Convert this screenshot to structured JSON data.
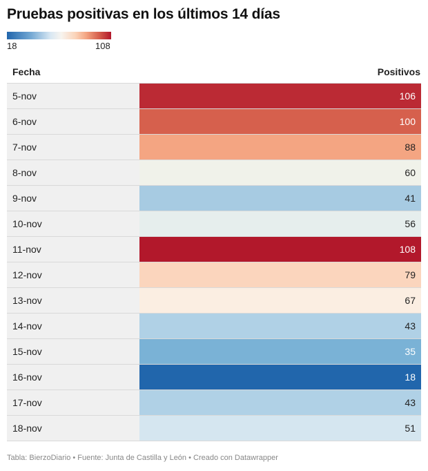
{
  "title": "Pruebas positivas en los últimos 14 días",
  "legend": {
    "min_label": "18",
    "max_label": "108",
    "min": 18,
    "max": 108
  },
  "footer": "Tabla: BierzoDiario • Fuente: Junta de Castilla y León • Creado con Datawrapper",
  "chart_data": {
    "type": "table",
    "columns": [
      "Fecha",
      "Positivos"
    ],
    "rows": [
      {
        "label": "5-nov",
        "value": 106,
        "color": "#bb2a34"
      },
      {
        "label": "6-nov",
        "value": 100,
        "color": "#d6604d"
      },
      {
        "label": "7-nov",
        "value": 88,
        "color": "#f4a582"
      },
      {
        "label": "8-nov",
        "value": 60,
        "color": "#f0f2ea"
      },
      {
        "label": "9-nov",
        "value": 41,
        "color": "#a7cbe2"
      },
      {
        "label": "10-nov",
        "value": 56,
        "color": "#e6eeed"
      },
      {
        "label": "11-nov",
        "value": 108,
        "color": "#b2182b"
      },
      {
        "label": "12-nov",
        "value": 79,
        "color": "#fbd5bd"
      },
      {
        "label": "13-nov",
        "value": 67,
        "color": "#fbeee2"
      },
      {
        "label": "14-nov",
        "value": 43,
        "color": "#b0d1e6"
      },
      {
        "label": "15-nov",
        "value": 35,
        "color": "#7ab2d6"
      },
      {
        "label": "16-nov",
        "value": 18,
        "color": "#2166ac"
      },
      {
        "label": "17-nov",
        "value": 43,
        "color": "#b0d1e6"
      },
      {
        "label": "18-nov",
        "value": 51,
        "color": "#d5e6f0"
      }
    ]
  }
}
